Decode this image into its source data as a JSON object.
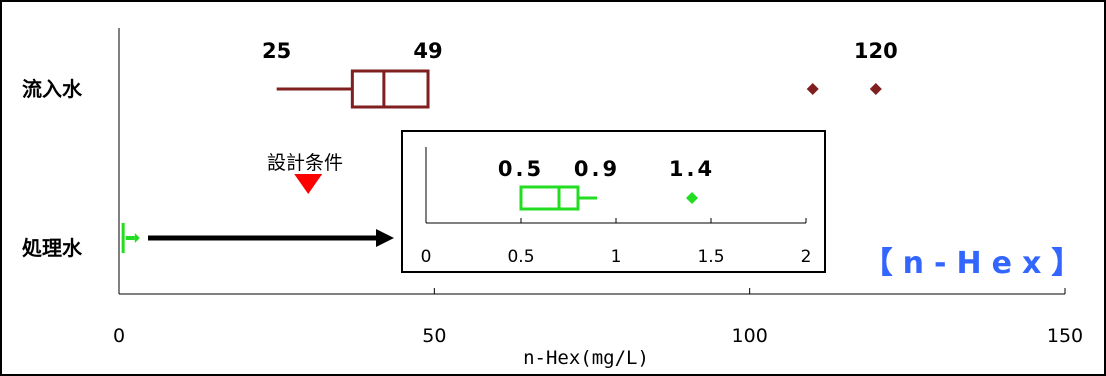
{
  "chart_data": {
    "type": "boxplot",
    "title": "【n-Hex】",
    "xlabel": "n-Hex(mg/L)",
    "xlim": [
      0,
      150
    ],
    "xticks": [
      0,
      50,
      100,
      150
    ],
    "categories": [
      "流入水",
      "処理水"
    ],
    "series": [
      {
        "name": "流入水",
        "color": "#7f1f1f",
        "whisker_low": 25,
        "q1": 37,
        "median": 42,
        "q3": 49,
        "outliers": [
          110,
          120
        ],
        "labels": [
          {
            "text": "25",
            "value": 25
          },
          {
            "text": "49",
            "value": 49
          },
          {
            "text": "120",
            "value": 120
          }
        ]
      },
      {
        "name": "処理水",
        "color": "#22dd22",
        "whisker_low": 0.5,
        "q1": 0.5,
        "median": 0.7,
        "q3": 0.8,
        "whisker_high": 0.9,
        "outliers": [
          1.4
        ]
      }
    ],
    "annotation": {
      "text": "設計条件",
      "value": 30,
      "color": "#ff0000"
    },
    "inset": {
      "xlim": [
        0,
        2
      ],
      "xticks": [
        0,
        0.5,
        1,
        1.5,
        2
      ],
      "xticklabels": [
        "0",
        "0.5",
        "1",
        "1.5",
        "2"
      ],
      "labels": [
        {
          "text": "0.5",
          "value": 0.5
        },
        {
          "text": "0.9",
          "value": 0.9
        },
        {
          "text": "1.4",
          "value": 1.4
        }
      ]
    }
  }
}
